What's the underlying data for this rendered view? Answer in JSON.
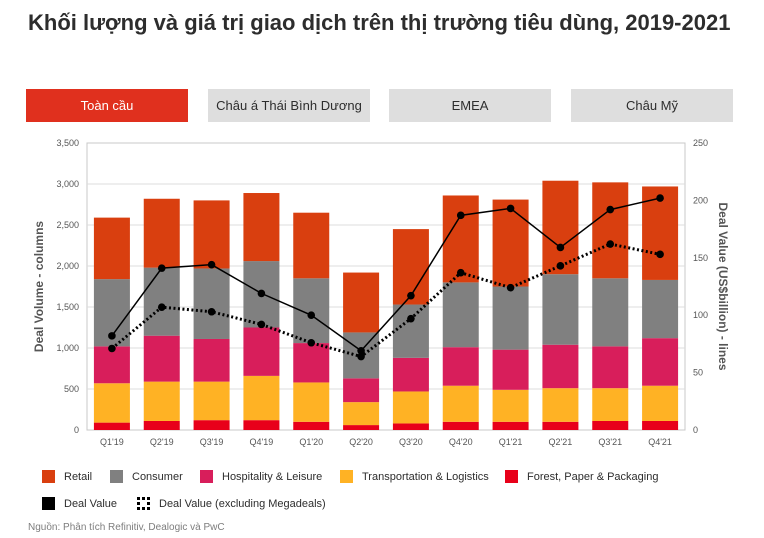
{
  "title": "Khối lượng và giá trị giao dịch trên thị trường tiêu dùng, 2019-2021",
  "tabs": [
    "Toàn cầu",
    "Châu á Thái Bình Dương",
    "EMEA",
    "Châu Mỹ"
  ],
  "active_tab": "Toàn cầu",
  "source": "Nguồn: Phân tích Refinitiv, Dealogic và PwC",
  "colors": {
    "retail": "#d93f0f",
    "consumer": "#808080",
    "hospitality": "#d81e5b",
    "transportation": "#ffb224",
    "forest": "#e8001a",
    "deal_value": "#000000",
    "active_tab": "#e0301e"
  },
  "chart_data": {
    "type": "bar",
    "stacked": true,
    "categories": [
      "Q1'19",
      "Q2'19",
      "Q3'19",
      "Q4'19",
      "Q1'20",
      "Q2'20",
      "Q3'20",
      "Q4'20",
      "Q1'21",
      "Q2'21",
      "Q3'21",
      "Q4'21"
    ],
    "series": [
      {
        "name": "Forest, Paper & Packaging",
        "key": "forest",
        "axis": "left",
        "values": [
          90,
          110,
          120,
          120,
          100,
          60,
          80,
          100,
          100,
          100,
          110,
          110
        ]
      },
      {
        "name": "Transportation & Logistics",
        "key": "transportation",
        "axis": "left",
        "values": [
          480,
          480,
          470,
          540,
          480,
          280,
          390,
          440,
          390,
          410,
          400,
          430
        ]
      },
      {
        "name": "Hospitality & Leisure",
        "key": "hospitality",
        "axis": "left",
        "values": [
          450,
          560,
          520,
          590,
          480,
          290,
          410,
          470,
          490,
          530,
          510,
          580
        ]
      },
      {
        "name": "Consumer",
        "key": "consumer",
        "axis": "left",
        "values": [
          820,
          830,
          860,
          810,
          790,
          560,
          650,
          790,
          770,
          860,
          830,
          710
        ]
      },
      {
        "name": "Retail",
        "key": "retail",
        "axis": "left",
        "values": [
          750,
          840,
          830,
          830,
          800,
          730,
          920,
          1060,
          1060,
          1140,
          1170,
          1140
        ]
      },
      {
        "name": "Deal Value",
        "key": "deal_value",
        "type": "line",
        "style": "solid",
        "axis": "right",
        "values": [
          82,
          141,
          144,
          119,
          100,
          69,
          117,
          187,
          193,
          159,
          192,
          202
        ]
      },
      {
        "name": "Deal Value (excluding Megadeals)",
        "key": "deal_value_ex",
        "type": "line",
        "style": "dotted",
        "axis": "right",
        "values": [
          71,
          107,
          103,
          92,
          76,
          64,
          97,
          137,
          124,
          143,
          162,
          153
        ]
      }
    ],
    "ylabel": "Deal Volume - columns",
    "y2label": "Deal Value (US$billion) - lines",
    "ylim": [
      0,
      3500
    ],
    "y2lim": [
      0,
      250
    ],
    "yticks": [
      "0",
      "500",
      "1,000",
      "1,500",
      "2,000",
      "2,500",
      "3,000",
      "3,500"
    ],
    "y2ticks": [
      "0",
      "50",
      "100",
      "150",
      "200",
      "250"
    ],
    "grid": true,
    "legend": [
      {
        "label": "Retail",
        "key": "retail"
      },
      {
        "label": "Consumer",
        "key": "consumer"
      },
      {
        "label": "Hospitality & Leisure",
        "key": "hospitality"
      },
      {
        "label": "Transportation & Logistics",
        "key": "transportation"
      },
      {
        "label": "Forest, Paper & Packaging",
        "key": "forest"
      },
      {
        "label": "Deal Value",
        "key": "deal_value"
      },
      {
        "label": "Deal Value (excluding Megadeals)",
        "key": "deal_value_ex"
      }
    ],
    "legend_position": "bottom"
  }
}
